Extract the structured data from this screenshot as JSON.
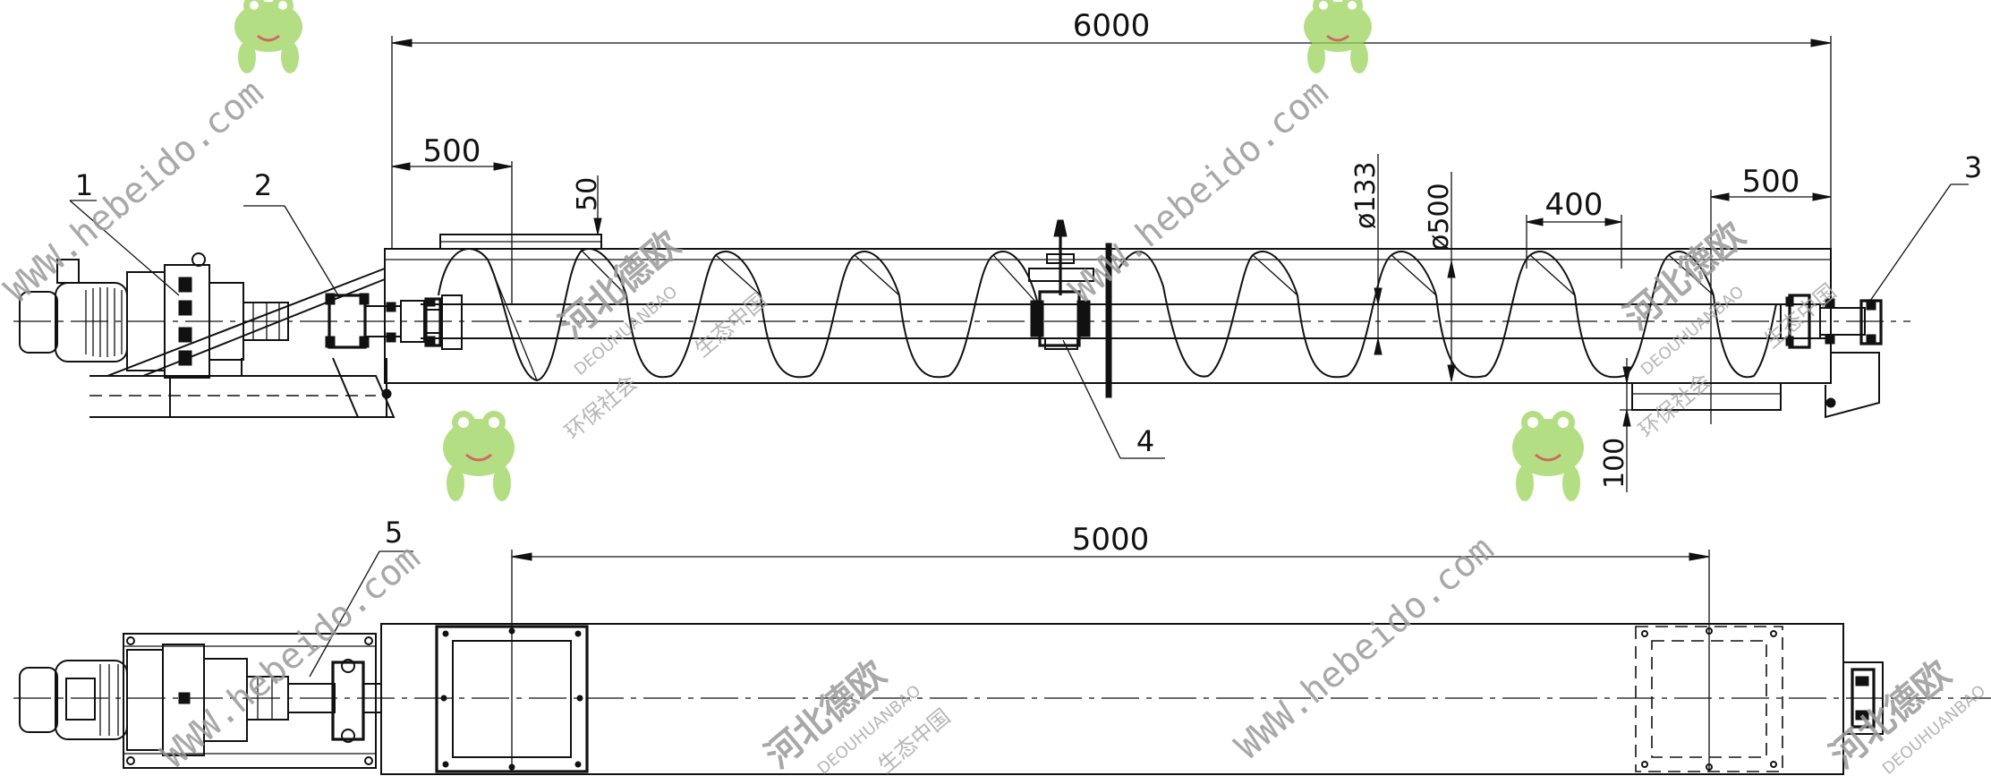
{
  "dimensions": {
    "overall_length": "6000",
    "inlet_offset": "500",
    "inlet_height": "50",
    "shaft_diameter": "ø133",
    "screw_diameter": "ø500",
    "screw_pitch": "400",
    "outlet_offset": "500",
    "leg_height": "100",
    "inlet_outlet_spacing": "5000"
  },
  "callouts": [
    "1",
    "2",
    "3",
    "4",
    "5"
  ],
  "watermarks": {
    "url": "WWW.hebeido.com",
    "brand_cn": "河北德欧",
    "slogan_cn": "环保社会",
    "slogan2_cn": "生态中国",
    "pinyin": "DEOUHUANBAO"
  },
  "icons": [
    "frog-mascot-icon"
  ],
  "colors": {
    "line": "#111111",
    "watermark": "#9a9a9a",
    "frog": "#9bd35a"
  }
}
